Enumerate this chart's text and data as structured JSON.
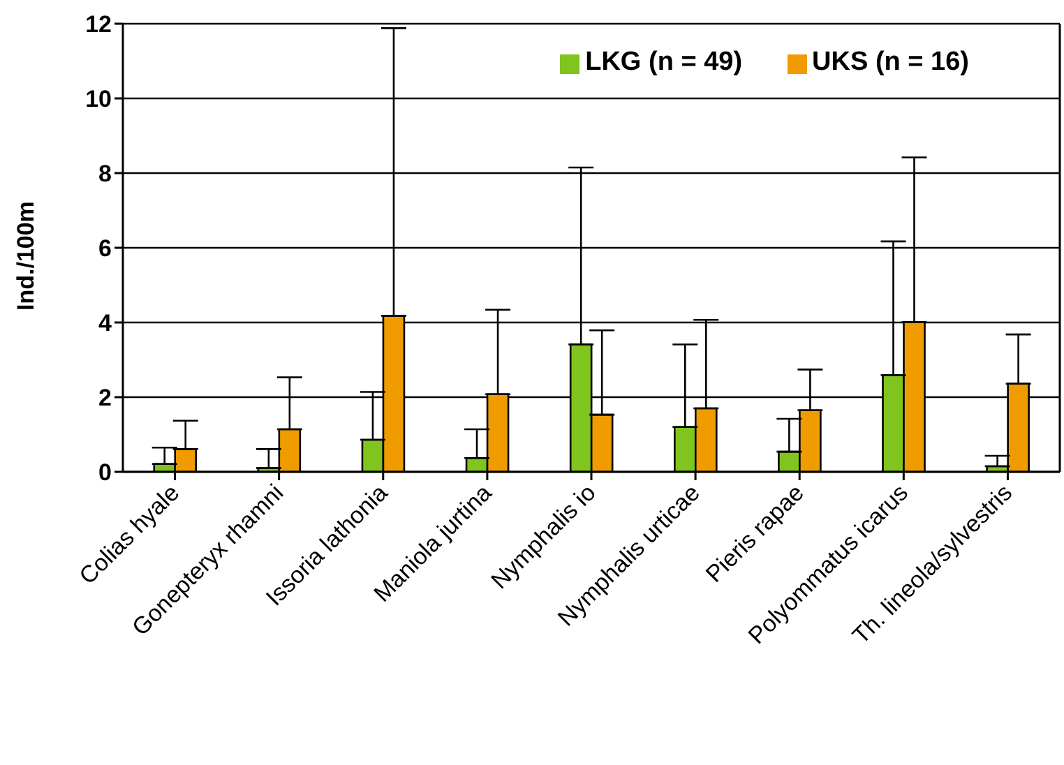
{
  "chart_data": {
    "type": "bar",
    "ylabel": "Ind./100m",
    "categories": [
      "Colias hyale",
      "Gonepteryx rhamni",
      "Issoria lathonia",
      "Maniola jurtina",
      "Nymphalis io",
      "Nymphalis urticae",
      "Pieris rapae",
      "Polyommatus icarus",
      "Th. lineola/sylvestris"
    ],
    "series": [
      {
        "name": "LKG (n = 49)",
        "color": "#80c41e",
        "values": [
          0.21,
          0.1,
          0.86,
          0.37,
          3.41,
          1.2,
          0.54,
          2.59,
          0.15
        ],
        "errors": [
          [
            0.21,
            0.65
          ],
          [
            0.1,
            0.61
          ],
          [
            0.86,
            2.14
          ],
          [
            0.37,
            1.14
          ],
          [
            3.41,
            8.15
          ],
          [
            1.2,
            3.41
          ],
          [
            0.54,
            1.42
          ],
          [
            2.59,
            6.17
          ],
          [
            0.15,
            0.43
          ]
        ]
      },
      {
        "name": "UKS (n = 16)",
        "color": "#f09c00",
        "values": [
          0.61,
          1.14,
          4.18,
          2.08,
          1.53,
          1.7,
          1.65,
          4.01,
          2.36
        ],
        "errors": [
          [
            0.61,
            1.37
          ],
          [
            1.14,
            2.53
          ],
          [
            4.18,
            11.88
          ],
          [
            2.08,
            4.34
          ],
          [
            1.53,
            3.79
          ],
          [
            1.7,
            4.07
          ],
          [
            1.65,
            2.74
          ],
          [
            4.01,
            8.42
          ],
          [
            2.36,
            3.68
          ]
        ]
      }
    ],
    "ylim": [
      0,
      12
    ],
    "yticks": [
      0,
      2,
      4,
      6,
      8,
      10,
      12
    ],
    "grid": "y",
    "legend": "top right"
  }
}
